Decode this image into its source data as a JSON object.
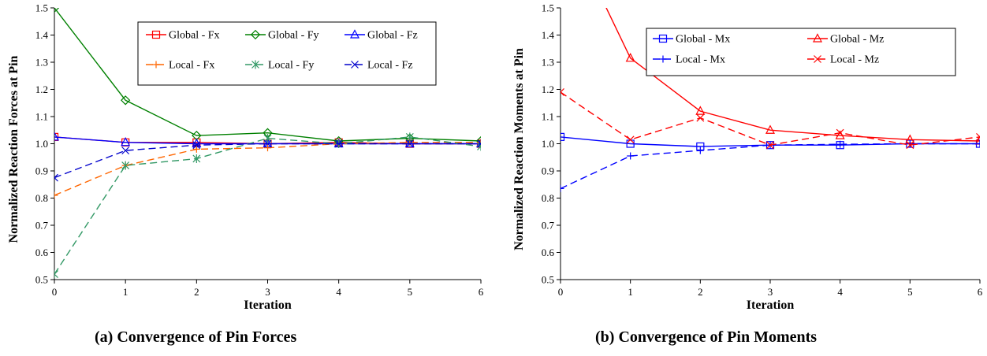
{
  "chart_data": [
    {
      "type": "line",
      "caption": "(a) Convergence of Pin Forces",
      "xlabel": "Iteration",
      "ylabel": "Normalized Reaction Forces at Pin",
      "xlim": [
        0,
        6
      ],
      "ylim": [
        0.5,
        1.5
      ],
      "x": [
        0,
        1,
        2,
        3,
        4,
        5,
        6
      ],
      "xticks": [
        "0",
        "1",
        "2",
        "3",
        "4",
        "5",
        "6"
      ],
      "yticks": [
        "0.5",
        "0.6",
        "0.7",
        "0.8",
        "0.9",
        "1.0",
        "1.1",
        "1.2",
        "1.3",
        "1.4",
        "1.5"
      ],
      "legend_position": "top-right",
      "series": [
        {
          "name": "Global - Fx",
          "color": "#ff0000",
          "marker": "square",
          "dash": "solid",
          "values": [
            1.025,
            1.005,
            1.005,
            1.0,
            1.005,
            1.0,
            1.0
          ]
        },
        {
          "name": "Global - Fy",
          "color": "#008000",
          "marker": "diamond",
          "dash": "solid",
          "values": [
            1.5,
            1.16,
            1.03,
            1.04,
            1.01,
            1.02,
            1.01
          ]
        },
        {
          "name": "Global - Fz",
          "color": "#0000ff",
          "marker": "triangle",
          "dash": "solid",
          "values": [
            1.025,
            1.005,
            1.0,
            1.0,
            1.0,
            1.0,
            1.0
          ]
        },
        {
          "name": "Local - Fx",
          "color": "#ff6600",
          "marker": "plus",
          "dash": "dashed",
          "values": [
            0.81,
            0.92,
            0.98,
            0.985,
            1.0,
            1.005,
            1.005
          ]
        },
        {
          "name": "Local - Fy",
          "color": "#339966",
          "marker": "star",
          "dash": "dashed",
          "values": [
            0.52,
            0.92,
            0.945,
            1.02,
            1.0,
            1.025,
            0.99
          ]
        },
        {
          "name": "Local - Fz",
          "color": "#0000cc",
          "marker": "x",
          "dash": "dashed",
          "values": [
            0.875,
            0.975,
            0.995,
            1.0,
            1.0,
            1.0,
            1.0
          ]
        }
      ]
    },
    {
      "type": "line",
      "caption": "(b) Convergence of Pin Moments",
      "xlabel": "Iteration",
      "ylabel": "Normalized Reaction Moments at Pin",
      "xlim": [
        0,
        6
      ],
      "ylim": [
        0.5,
        1.5
      ],
      "x": [
        0,
        1,
        2,
        3,
        4,
        5,
        6
      ],
      "xticks": [
        "0",
        "1",
        "2",
        "3",
        "4",
        "5",
        "6"
      ],
      "yticks": [
        "0.5",
        "0.6",
        "0.7",
        "0.8",
        "0.9",
        "1.0",
        "1.1",
        "1.2",
        "1.3",
        "1.4",
        "1.5"
      ],
      "legend_position": "top-right",
      "series": [
        {
          "name": "Global - Mx",
          "color": "#0000ff",
          "marker": "square",
          "dash": "solid",
          "values": [
            1.025,
            1.0,
            0.99,
            0.995,
            0.995,
            1.0,
            1.0
          ]
        },
        {
          "name": "Global - Mz",
          "color": "#ff0000",
          "marker": "triangle",
          "dash": "solid",
          "values": [
            1.85,
            1.315,
            1.12,
            1.05,
            1.03,
            1.015,
            1.01
          ]
        },
        {
          "name": "Local - Mx",
          "color": "#0000ff",
          "marker": "plus",
          "dash": "dashed",
          "values": [
            0.835,
            0.955,
            0.975,
            0.995,
            0.998,
            1.0,
            1.0
          ]
        },
        {
          "name": "Local - Mz",
          "color": "#ff0000",
          "marker": "x",
          "dash": "dashed",
          "values": [
            1.19,
            1.015,
            1.095,
            0.995,
            1.04,
            0.995,
            1.025
          ]
        }
      ]
    }
  ]
}
